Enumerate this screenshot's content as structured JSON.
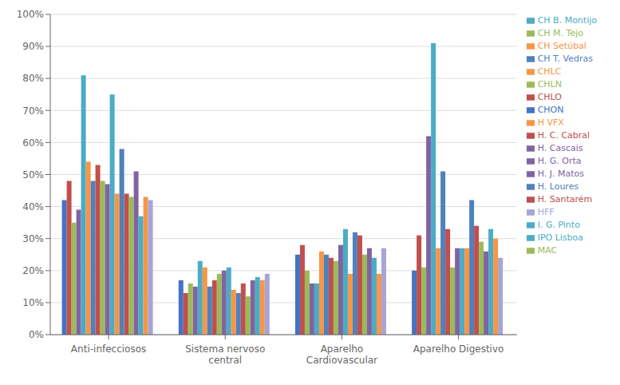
{
  "chart_data": {
    "type": "bar",
    "categories": [
      "Anti-infecciosos",
      "Sistema nervoso\ncentral",
      "Aparelho\nCardiovascular",
      "Aparelho Digestivo"
    ],
    "series": [
      {
        "name": "CHON",
        "color": "#4472C4",
        "values": [
          0.42,
          0.17,
          0.25,
          0.2
        ]
      },
      {
        "name": "H. C. Cabral",
        "color": "#C0504D",
        "values": [
          0.48,
          0.13,
          0.28,
          0.31
        ]
      },
      {
        "name": "MAC",
        "color": "#9BBB59",
        "values": [
          0.35,
          0.16,
          0.2,
          0.21
        ]
      },
      {
        "name": "H. J. Matos",
        "color": "#8064A2",
        "values": [
          0.39,
          0.15,
          0.16,
          0.62
        ]
      },
      {
        "name": "I. G. Pinto",
        "color": "#4BACC6",
        "values": [
          0.81,
          0.23,
          0.16,
          0.91
        ]
      },
      {
        "name": "CHLC",
        "color": "#F79646",
        "values": [
          0.54,
          0.21,
          0.26,
          0.27
        ]
      },
      {
        "name": "CH T. Vedras",
        "color": "#4F81BD",
        "values": [
          0.48,
          0.15,
          0.25,
          0.51
        ]
      },
      {
        "name": "CHLO",
        "color": "#C0504D",
        "values": [
          0.53,
          0.17,
          0.24,
          0.33
        ]
      },
      {
        "name": "CHLN",
        "color": "#9BBB59",
        "values": [
          0.48,
          0.19,
          0.23,
          0.21
        ]
      },
      {
        "name": "H. Cascais",
        "color": "#8064A2",
        "values": [
          0.47,
          0.2,
          0.28,
          0.27
        ]
      },
      {
        "name": "IPO Lisboa",
        "color": "#4BACC6",
        "values": [
          0.75,
          0.21,
          0.33,
          0.27
        ]
      },
      {
        "name": "H VFX",
        "color": "#F79646",
        "values": [
          0.44,
          0.14,
          0.19,
          0.27
        ]
      },
      {
        "name": "H. Loures",
        "color": "#4F81BD",
        "values": [
          0.58,
          0.13,
          0.32,
          0.42
        ]
      },
      {
        "name": "H. Santarém",
        "color": "#C0504D",
        "values": [
          0.44,
          0.16,
          0.31,
          0.34
        ]
      },
      {
        "name": "CH M. Tejo",
        "color": "#9BBB59",
        "values": [
          0.43,
          0.12,
          0.25,
          0.29
        ]
      },
      {
        "name": "H. G. Orta",
        "color": "#8064A2",
        "values": [
          0.51,
          0.17,
          0.27,
          0.26
        ]
      },
      {
        "name": "CH B. Montijo",
        "color": "#4BACC6",
        "values": [
          0.37,
          0.18,
          0.24,
          0.33
        ]
      },
      {
        "name": "CH Setúbal",
        "color": "#F79646",
        "values": [
          0.43,
          0.17,
          0.19,
          0.3
        ]
      },
      {
        "name": "HFF",
        "color": "#A5A5D8",
        "values": [
          0.42,
          0.19,
          0.27,
          0.24
        ]
      }
    ],
    "ylim": [
      0,
      1.0
    ],
    "yticks": [
      {
        "value": 0.0,
        "label": "0%"
      },
      {
        "value": 0.1,
        "label": "10%"
      },
      {
        "value": 0.2,
        "label": "20%"
      },
      {
        "value": 0.3,
        "label": "30%"
      },
      {
        "value": 0.4,
        "label": "40%"
      },
      {
        "value": 0.5,
        "label": "50%"
      },
      {
        "value": 0.6,
        "label": "60%"
      },
      {
        "value": 0.7,
        "label": "70%"
      },
      {
        "value": 0.8,
        "label": "80%"
      },
      {
        "value": 0.9,
        "label": "90%"
      },
      {
        "value": 1.0,
        "label": "100%"
      }
    ],
    "grid": true,
    "legend": "right"
  }
}
